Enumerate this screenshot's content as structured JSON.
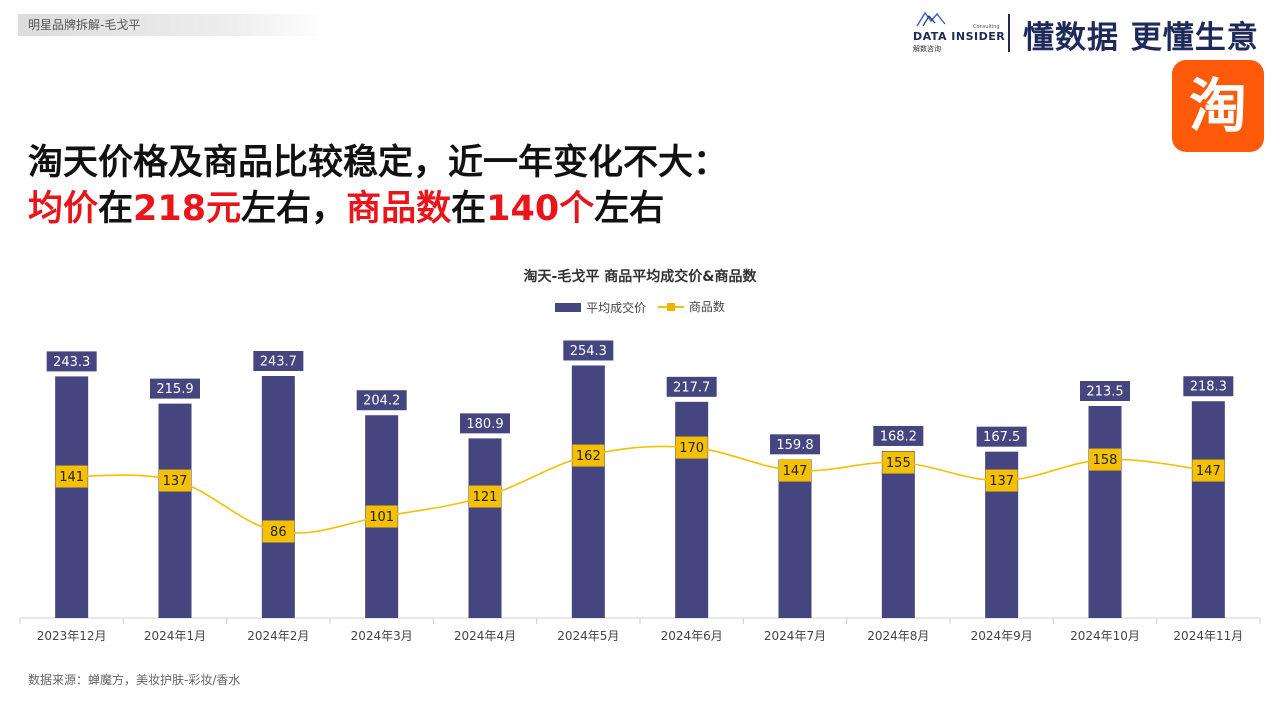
{
  "header": {
    "breadcrumb": "明星品牌拆解-毛戈平",
    "brand_name": "DATA INSIDER",
    "brand_sub": "解数咨询",
    "brand_consult": "Consulting",
    "slogan": "懂数据 更懂生意",
    "platform_logo_text": "淘"
  },
  "headline": {
    "line1": "淘天价格及商品比较稳定，近一年变化不大：",
    "line2_parts": [
      "均价",
      "在",
      "218元",
      "左右，",
      "商品数",
      "在",
      "140个",
      "左右"
    ]
  },
  "colors": {
    "bar": "#45467f",
    "line": "#f5c000",
    "line_label_bg": "#f5c000",
    "headline_red": "#e8151b",
    "brand": "#1e2a5a",
    "taobao_orange": "#ff5a0a"
  },
  "chart_data": {
    "type": "bar",
    "title": "淘天-毛戈平 商品平均成交价&商品数",
    "categories": [
      "2023年12月",
      "2024年1月",
      "2024年2月",
      "2024年3月",
      "2024年4月",
      "2024年5月",
      "2024年6月",
      "2024年7月",
      "2024年8月",
      "2024年9月",
      "2024年10月",
      "2024年11月"
    ],
    "series": [
      {
        "name": "平均成交价",
        "type": "bar",
        "values": [
          243.3,
          215.9,
          243.7,
          204.2,
          180.9,
          254.3,
          217.7,
          159.8,
          168.2,
          167.5,
          213.5,
          218.3
        ]
      },
      {
        "name": "商品数",
        "type": "line",
        "values": [
          141,
          137,
          86,
          101,
          121,
          162,
          170,
          147,
          155,
          137,
          158,
          147
        ]
      }
    ],
    "legend_position": "top",
    "grid": false
  },
  "source": "数据来源：蝉魔方，美妆护肤-彩妆/香水"
}
